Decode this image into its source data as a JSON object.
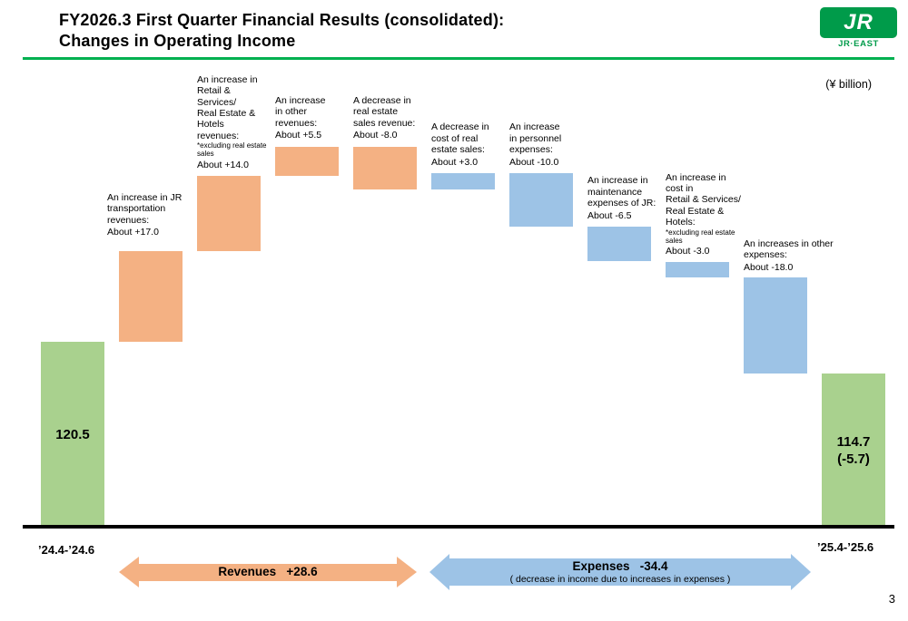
{
  "header": {
    "title_line1": "FY2026.3 First Quarter Financial Results (consolidated):",
    "title_line2": "Changes in Operating Income",
    "unit_label": "(¥ billion)",
    "logo": {
      "mark": "JR",
      "name": "JR·EAST"
    }
  },
  "chart_data": {
    "type": "waterfall",
    "title": "FY2026.3 First Quarter Changes in Operating Income",
    "unit": "¥ billion",
    "start_period": "’24.4-’24.6",
    "end_period": "’25.4-’25.6",
    "start_value": 120.5,
    "end_value": 114.7,
    "end_change": -5.7,
    "bars": [
      {
        "kind": "total",
        "group": "total",
        "value": 120.5,
        "bar_label_lines": [
          "120.5"
        ]
      },
      {
        "kind": "delta",
        "group": "revenue",
        "value": 17.0,
        "annotation": "An increase in JR\ntransportation\nrevenues:",
        "note": "",
        "value_label": "About +17.0"
      },
      {
        "kind": "delta",
        "group": "revenue",
        "value": 14.0,
        "annotation": "An increase in\nRetail &\nServices/\nReal Estate &\nHotels\nrevenues:",
        "note": "*excluding real estate\nsales",
        "value_label": "About +14.0"
      },
      {
        "kind": "delta",
        "group": "revenue",
        "value": 5.5,
        "annotation": "An increase\nin other\nrevenues:",
        "note": "",
        "value_label": "About +5.5"
      },
      {
        "kind": "delta",
        "group": "revenue",
        "value": -8.0,
        "annotation": "A decrease in\nreal estate\nsales revenue:",
        "note": "",
        "value_label": "About -8.0"
      },
      {
        "kind": "delta",
        "group": "expense",
        "value": 3.0,
        "annotation": "A decrease in\ncost of real\nestate sales:",
        "note": "",
        "value_label": "About +3.0"
      },
      {
        "kind": "delta",
        "group": "expense",
        "value": -10.0,
        "annotation": "An increase\nin personnel\nexpenses:",
        "note": "",
        "value_label": "About -10.0"
      },
      {
        "kind": "delta",
        "group": "expense",
        "value": -6.5,
        "annotation": "An increase in\nmaintenance\nexpenses of JR:",
        "note": "",
        "value_label": "About -6.5"
      },
      {
        "kind": "delta",
        "group": "expense",
        "value": -3.0,
        "annotation": "An increase in\ncost in\nRetail & Services/\nReal Estate &\nHotels:",
        "note": "*excluding real estate\nsales",
        "value_label": "About -3.0"
      },
      {
        "kind": "delta",
        "group": "expense",
        "value": -18.0,
        "annotation": "An increases in other\nexpenses:",
        "note": "",
        "value_label": "About -18.0"
      },
      {
        "kind": "total",
        "group": "total",
        "value": 114.7,
        "bar_label_lines": [
          "114.7",
          "(-5.7)"
        ]
      }
    ],
    "summary_arrows": [
      {
        "name": "revenues",
        "label": "Revenues   +28.6",
        "sublabel": "",
        "color": "#f4b183"
      },
      {
        "name": "expenses",
        "label": "Expenses   -34.4",
        "sublabel": "( decrease in income due to increases in expenses )",
        "color": "#9dc3e6"
      }
    ]
  },
  "colors": {
    "total_bar": "#a9d18e",
    "revenue_bar": "#f4b183",
    "expense_bar": "#9dc3e6",
    "title_rule": "#00b050",
    "logo_green": "#009b4a",
    "baseline": "#000000"
  },
  "footer": {
    "page_number": "3"
  }
}
